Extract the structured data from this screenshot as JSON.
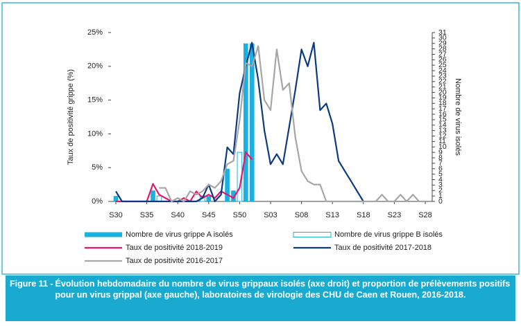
{
  "chart_data": {
    "type": "bar",
    "x_axis_label": null,
    "y_label": "Taux de positivité grippe (%)",
    "y2_label": "Nombre de virus isolés",
    "categories": [
      "S30",
      null,
      null,
      null,
      null,
      "S35",
      null,
      null,
      null,
      null,
      "S40",
      null,
      null,
      null,
      null,
      "S45",
      null,
      null,
      null,
      null,
      "S50",
      null,
      null,
      null,
      null,
      "S03",
      null,
      null,
      null,
      null,
      "S08",
      null,
      null,
      null,
      null,
      "S13",
      null,
      null,
      null,
      null,
      "S18",
      null,
      null,
      null,
      null,
      "S23",
      null,
      null,
      null,
      null,
      "S28"
    ],
    "ylim": [
      0,
      25
    ],
    "yticks": [
      {
        "value": 0,
        "label": "0%"
      },
      {
        "value": 5,
        "label": "5%"
      },
      {
        "value": 10,
        "label": "10%"
      },
      {
        "value": 15,
        "label": "15%"
      },
      {
        "value": 20,
        "label": "20%"
      },
      {
        "value": 25,
        "label": "25%"
      }
    ],
    "y2lim": [
      0,
      31
    ],
    "y2ticks": [
      0,
      1,
      2,
      3,
      4,
      5,
      6,
      7,
      8,
      9,
      10,
      11,
      12,
      13,
      14,
      15,
      16,
      17,
      18,
      19,
      20,
      21,
      22,
      23,
      24,
      25,
      26,
      27,
      28,
      29,
      30,
      31
    ],
    "series": [
      {
        "name": "Nombre de virus grippe A isolés",
        "type": "bar",
        "axis": "y2",
        "color": "#1ab0e0",
        "hollow": false,
        "values": [
          1,
          null,
          null,
          null,
          null,
          null,
          2,
          1,
          null,
          null,
          null,
          null,
          null,
          null,
          null,
          1,
          null,
          null,
          6,
          2,
          2,
          29,
          29,
          null,
          null,
          null,
          null,
          null,
          null,
          null,
          null,
          null,
          null,
          null,
          null,
          null,
          null,
          null,
          null,
          null,
          null,
          null,
          null,
          null,
          null,
          null,
          null,
          null,
          null,
          null,
          null
        ]
      },
      {
        "name": "Nombre de virus grippe B isolés",
        "type": "bar",
        "axis": "y2",
        "color": "#1ab0e0",
        "hollow": true,
        "values": [
          null,
          null,
          null,
          null,
          null,
          null,
          null,
          1,
          null,
          null,
          null,
          null,
          null,
          null,
          1,
          null,
          null,
          null,
          null,
          null,
          9,
          null,
          null,
          null,
          null,
          null,
          null,
          null,
          null,
          null,
          null,
          null,
          null,
          null,
          null,
          null,
          null,
          null,
          null,
          null,
          null,
          null,
          null,
          null,
          null,
          null,
          null,
          null,
          null,
          null,
          null
        ]
      },
      {
        "name": "Taux de positivité 2018-2019",
        "type": "line",
        "color": "#e6186e",
        "values": [
          0,
          0,
          0,
          0,
          0,
          0,
          2.6,
          1,
          0.5,
          0,
          0,
          0.5,
          0,
          1.5,
          0.5,
          1,
          0.5,
          1.5,
          1,
          0.5,
          2,
          7.3,
          6.2,
          null,
          null,
          null,
          null,
          null,
          null,
          null,
          null,
          null,
          null,
          null,
          null,
          null,
          null,
          null,
          null,
          null,
          null,
          null,
          null,
          null,
          null,
          null,
          null,
          null,
          null,
          null,
          null
        ]
      },
      {
        "name": "Taux de positivité 2017-2018",
        "type": "line",
        "color": "#0b3a80",
        "values": [
          1.5,
          0,
          0,
          0,
          0,
          0,
          0,
          0,
          0,
          0,
          0,
          0,
          0,
          0,
          0.5,
          2.5,
          0,
          1,
          8,
          7,
          16,
          20,
          23.5,
          18,
          10.5,
          5.5,
          7,
          5.5,
          11,
          16.5,
          22.5,
          20,
          23.5,
          13.5,
          14.5,
          11.5,
          6,
          4.5,
          3,
          1.5,
          0,
          null,
          null,
          null,
          null,
          null,
          null,
          null,
          null,
          null,
          null
        ]
      },
      {
        "name": "Taux de positivité 2016-2017",
        "type": "line",
        "color": "#a6a6a6",
        "values": [
          null,
          null,
          null,
          null,
          null,
          null,
          null,
          2,
          2,
          0,
          0.5,
          0,
          1.5,
          1,
          1.5,
          2.5,
          2,
          3,
          5.5,
          6,
          12,
          20.5,
          20,
          23,
          15,
          13.5,
          22.5,
          16.5,
          17.5,
          9.5,
          4.5,
          3,
          2.5,
          2.5,
          0,
          0,
          0,
          0,
          0,
          0,
          0,
          0,
          0,
          1,
          0,
          0,
          1,
          0,
          1,
          0,
          0
        ]
      }
    ],
    "caption_label": "Figure 11 -",
    "caption": "Évolution hebdomadaire du nombre de virus grippaux isolés (axe droit) et proportion de prélèvements positifs pour un virus grippal (axe gauche), laboratoires de virologie des CHU de Caen et Rouen, 2016-2018."
  }
}
